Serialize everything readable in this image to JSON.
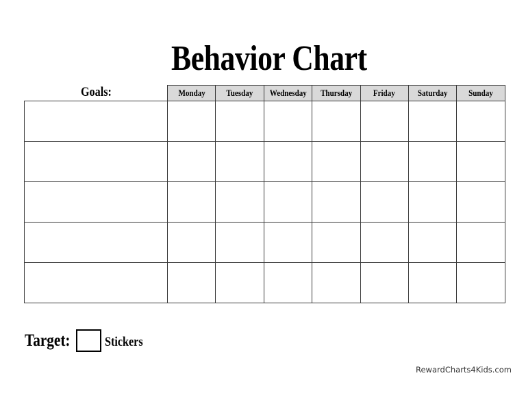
{
  "title": "Behavior Chart",
  "goals_label": "Goals:",
  "days": [
    "Monday",
    "Tuesday",
    "Wednesday",
    "Thursday",
    "Friday",
    "Saturday",
    "Sunday"
  ],
  "goal_rows": [
    "",
    "",
    "",
    "",
    ""
  ],
  "target_label": "Target:",
  "target_value": "",
  "stickers_label": "Stickers",
  "website": "RewardCharts4Kids.com",
  "colors": {
    "header_bg": "#d9d9d9",
    "grid": "#3a3a3a"
  }
}
